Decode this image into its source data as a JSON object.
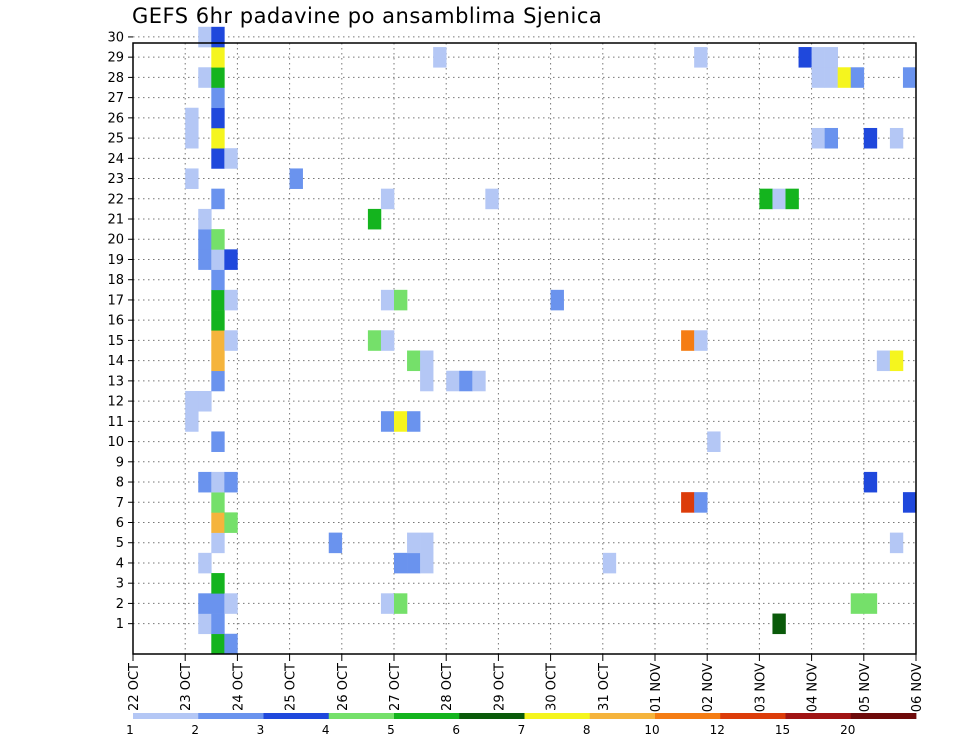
{
  "chart_data": {
    "type": "heatmap",
    "title": "GEFS 6hr padavine po ansamblima Sjenica",
    "xlabel": "",
    "ylabel": "",
    "x_tick_labels": [
      "22 OCT",
      "23 OCT",
      "24 OCT",
      "25 OCT",
      "26 OCT",
      "27 OCT",
      "28 OCT",
      "29 OCT",
      "30 OCT",
      "31 OCT",
      "01 NOV",
      "02 NOV",
      "03 NOV",
      "04 NOV",
      "05 NOV",
      "06 NOV"
    ],
    "x_unit": "day index (0 = 22 OCT 00Z), 6-hour steps",
    "xlim": [
      0,
      15
    ],
    "ylim": [
      0,
      30
    ],
    "y_tick_labels": [
      1,
      2,
      3,
      4,
      5,
      6,
      7,
      8,
      9,
      10,
      11,
      12,
      13,
      14,
      15,
      16,
      17,
      18,
      19,
      20,
      21,
      22,
      23,
      24,
      25,
      26,
      27,
      28,
      29,
      30
    ],
    "grid": true,
    "legend_position": "bottom",
    "legend": {
      "levels": [
        "1",
        "2",
        "3",
        "4",
        "5",
        "6",
        "7",
        "8",
        "10",
        "12",
        "15",
        "20",
        ""
      ],
      "colors": [
        "#b4c7f5",
        "#6a93ee",
        "#1f48dc",
        "#75e06a",
        "#14b41e",
        "#0a5a0a",
        "#f5f51e",
        "#f5b43c",
        "#f57d14",
        "#dc3c0a",
        "#a01414",
        "#6e0a0a"
      ]
    },
    "cells": [
      {
        "x": 1.25,
        "m": 1,
        "c": 0
      },
      {
        "x": 1.25,
        "m": 2,
        "c": 1
      },
      {
        "x": 1.25,
        "m": 4,
        "c": 0
      },
      {
        "x": 1.25,
        "m": 8,
        "c": 1
      },
      {
        "x": 1.25,
        "m": 12,
        "c": 0
      },
      {
        "x": 1.25,
        "m": 19,
        "c": 1
      },
      {
        "x": 1.25,
        "m": 20,
        "c": 1
      },
      {
        "x": 1.25,
        "m": 21,
        "c": 0
      },
      {
        "x": 1.25,
        "m": 28,
        "c": 0
      },
      {
        "x": 1.25,
        "m": 30,
        "c": 0
      },
      {
        "x": 1.0,
        "m": 11,
        "c": 0
      },
      {
        "x": 1.0,
        "m": 12,
        "c": 0
      },
      {
        "x": 1.0,
        "m": 23,
        "c": 0
      },
      {
        "x": 1.0,
        "m": 25,
        "c": 0
      },
      {
        "x": 1.0,
        "m": 26,
        "c": 0
      },
      {
        "x": 1.5,
        "m": 0,
        "c": 4
      },
      {
        "x": 1.5,
        "m": 1,
        "c": 1
      },
      {
        "x": 1.5,
        "m": 2,
        "c": 1
      },
      {
        "x": 1.5,
        "m": 3,
        "c": 4
      },
      {
        "x": 1.5,
        "m": 5,
        "c": 0
      },
      {
        "x": 1.5,
        "m": 6,
        "c": 7
      },
      {
        "x": 1.5,
        "m": 7,
        "c": 3
      },
      {
        "x": 1.5,
        "m": 8,
        "c": 0
      },
      {
        "x": 1.5,
        "m": 10,
        "c": 1
      },
      {
        "x": 1.5,
        "m": 13,
        "c": 1
      },
      {
        "x": 1.5,
        "m": 14,
        "c": 7
      },
      {
        "x": 1.5,
        "m": 15,
        "c": 7
      },
      {
        "x": 1.5,
        "m": 16,
        "c": 4
      },
      {
        "x": 1.5,
        "m": 17,
        "c": 4
      },
      {
        "x": 1.5,
        "m": 18,
        "c": 1
      },
      {
        "x": 1.5,
        "m": 19,
        "c": 0
      },
      {
        "x": 1.5,
        "m": 20,
        "c": 3
      },
      {
        "x": 1.5,
        "m": 22,
        "c": 1
      },
      {
        "x": 1.5,
        "m": 24,
        "c": 2
      },
      {
        "x": 1.5,
        "m": 25,
        "c": 6
      },
      {
        "x": 1.5,
        "m": 26,
        "c": 2
      },
      {
        "x": 1.5,
        "m": 27,
        "c": 1
      },
      {
        "x": 1.5,
        "m": 28,
        "c": 4
      },
      {
        "x": 1.5,
        "m": 29,
        "c": 6
      },
      {
        "x": 1.5,
        "m": 30,
        "c": 2
      },
      {
        "x": 1.75,
        "m": 0,
        "c": 1
      },
      {
        "x": 1.75,
        "m": 2,
        "c": 0
      },
      {
        "x": 1.75,
        "m": 6,
        "c": 3
      },
      {
        "x": 1.75,
        "m": 8,
        "c": 1
      },
      {
        "x": 1.75,
        "m": 15,
        "c": 0
      },
      {
        "x": 1.75,
        "m": 17,
        "c": 0
      },
      {
        "x": 1.75,
        "m": 19,
        "c": 2
      },
      {
        "x": 1.75,
        "m": 24,
        "c": 0
      },
      {
        "x": 3.0,
        "m": 23,
        "c": 1
      },
      {
        "x": 3.75,
        "m": 5,
        "c": 1
      },
      {
        "x": 4.5,
        "m": 15,
        "c": 3
      },
      {
        "x": 4.5,
        "m": 21,
        "c": 4
      },
      {
        "x": 4.75,
        "m": 2,
        "c": 0
      },
      {
        "x": 4.75,
        "m": 11,
        "c": 1
      },
      {
        "x": 4.75,
        "m": 15,
        "c": 0
      },
      {
        "x": 4.75,
        "m": 17,
        "c": 0
      },
      {
        "x": 4.75,
        "m": 22,
        "c": 0
      },
      {
        "x": 5.0,
        "m": 2,
        "c": 3
      },
      {
        "x": 5.0,
        "m": 4,
        "c": 1
      },
      {
        "x": 5.0,
        "m": 11,
        "c": 6
      },
      {
        "x": 5.0,
        "m": 17,
        "c": 3
      },
      {
        "x": 5.25,
        "m": 4,
        "c": 1
      },
      {
        "x": 5.25,
        "m": 5,
        "c": 0
      },
      {
        "x": 5.25,
        "m": 11,
        "c": 1
      },
      {
        "x": 5.25,
        "m": 14,
        "c": 3
      },
      {
        "x": 5.5,
        "m": 4,
        "c": 0
      },
      {
        "x": 5.5,
        "m": 5,
        "c": 0
      },
      {
        "x": 5.5,
        "m": 13,
        "c": 0
      },
      {
        "x": 5.5,
        "m": 14,
        "c": 0
      },
      {
        "x": 5.75,
        "m": 29,
        "c": 0
      },
      {
        "x": 6.0,
        "m": 13,
        "c": 0
      },
      {
        "x": 6.25,
        "m": 13,
        "c": 1
      },
      {
        "x": 6.5,
        "m": 13,
        "c": 0
      },
      {
        "x": 6.75,
        "m": 22,
        "c": 0
      },
      {
        "x": 8.0,
        "m": 17,
        "c": 1
      },
      {
        "x": 9.0,
        "m": 4,
        "c": 0
      },
      {
        "x": 10.5,
        "m": 7,
        "c": 9
      },
      {
        "x": 10.5,
        "m": 15,
        "c": 8
      },
      {
        "x": 10.75,
        "m": 7,
        "c": 1
      },
      {
        "x": 10.75,
        "m": 15,
        "c": 0
      },
      {
        "x": 10.75,
        "m": 29,
        "c": 0
      },
      {
        "x": 11.0,
        "m": 10,
        "c": 0
      },
      {
        "x": 12.0,
        "m": 22,
        "c": 4
      },
      {
        "x": 12.25,
        "m": 1,
        "c": 5
      },
      {
        "x": 12.25,
        "m": 22,
        "c": 0
      },
      {
        "x": 12.5,
        "m": 22,
        "c": 4
      },
      {
        "x": 12.75,
        "m": 29,
        "c": 2
      },
      {
        "x": 13.0,
        "m": 25,
        "c": 0
      },
      {
        "x": 13.0,
        "m": 28,
        "c": 0
      },
      {
        "x": 13.0,
        "m": 29,
        "c": 0
      },
      {
        "x": 13.25,
        "m": 25,
        "c": 1
      },
      {
        "x": 13.25,
        "m": 28,
        "c": 0
      },
      {
        "x": 13.25,
        "m": 29,
        "c": 0
      },
      {
        "x": 13.5,
        "m": 28,
        "c": 6
      },
      {
        "x": 13.75,
        "m": 2,
        "c": 3
      },
      {
        "x": 13.75,
        "m": 28,
        "c": 1
      },
      {
        "x": 14.0,
        "m": 2,
        "c": 3
      },
      {
        "x": 14.0,
        "m": 8,
        "c": 2
      },
      {
        "x": 14.0,
        "m": 25,
        "c": 2
      },
      {
        "x": 14.25,
        "m": 14,
        "c": 0
      },
      {
        "x": 14.5,
        "m": 5,
        "c": 0
      },
      {
        "x": 14.5,
        "m": 14,
        "c": 6
      },
      {
        "x": 14.5,
        "m": 25,
        "c": 0
      },
      {
        "x": 14.75,
        "m": 7,
        "c": 2
      },
      {
        "x": 14.75,
        "m": 28,
        "c": 1
      }
    ]
  }
}
